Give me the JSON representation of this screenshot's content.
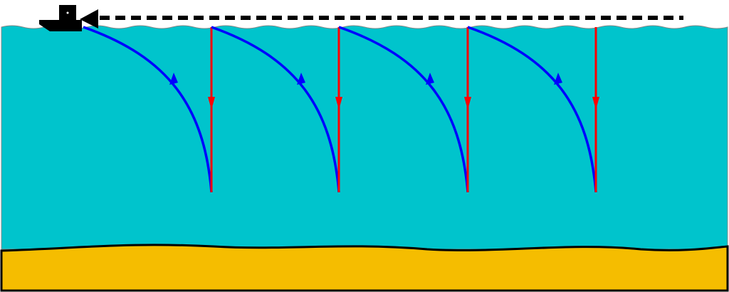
{
  "colors": {
    "water_top": "#a0fcfc",
    "water_bottom": "#00c4cc",
    "seabed": "#f5bd00",
    "outgoing_ray": "#ff0000",
    "return_ray": "#0000ff",
    "ship": "#000000"
  },
  "diagram": {
    "ping_count": 4,
    "ship_icon": "ship-icon",
    "towed_array_icon": "dashed-tow-line"
  }
}
